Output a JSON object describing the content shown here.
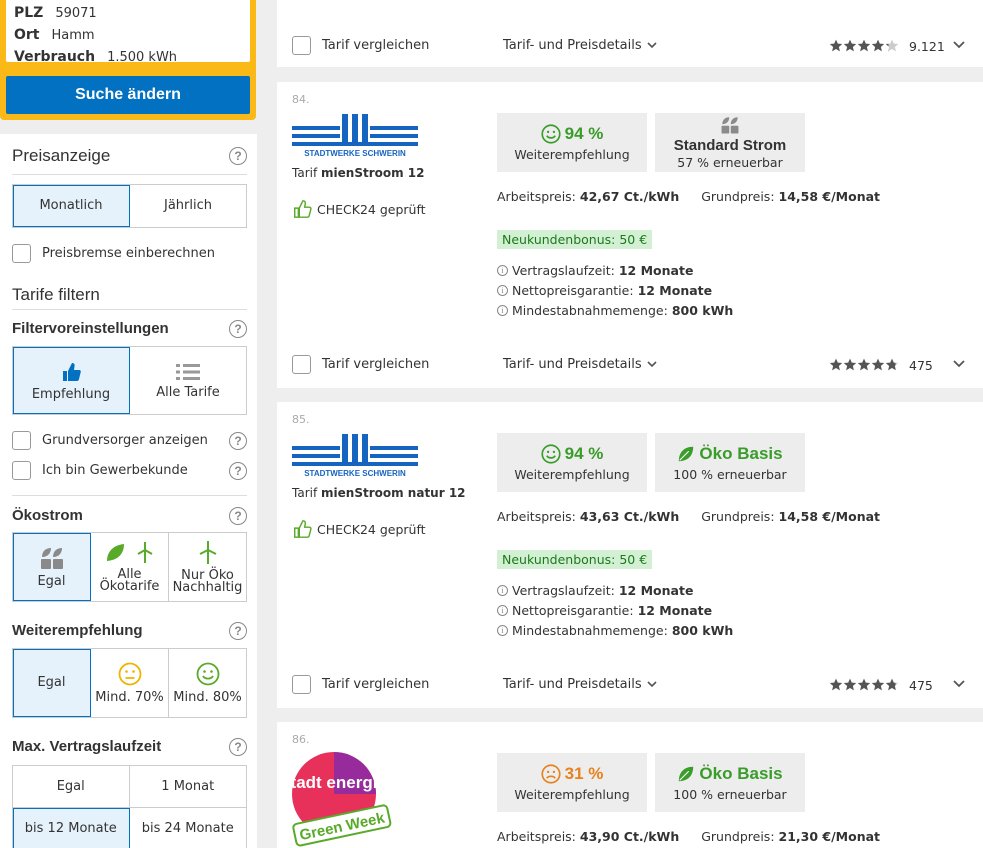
{
  "search": {
    "plz_label": "PLZ",
    "plz_value": "59071",
    "ort_label": "Ort",
    "ort_value": "Hamm",
    "verbrauch_label": "Verbrauch",
    "verbrauch_value": "1.500 kWh",
    "button_label": "Suche ändern"
  },
  "sidebar": {
    "preisanzeige": {
      "title": "Preisanzeige",
      "options": [
        "Monatlich",
        "Jährlich"
      ],
      "selected": "Monatlich"
    },
    "preisbremse_label": "Preisbremse einberechnen",
    "tarife_filtern_title": "Tarife filtern",
    "filtervoreinstellungen": {
      "title": "Filtervoreinstellungen",
      "options": [
        "Empfehlung",
        "Alle Tarife"
      ],
      "selected": "Empfehlung"
    },
    "grundversorger_label": "Grundversorger anzeigen",
    "gewerbekunde_label": "Ich bin Gewerbekunde",
    "oekostrom": {
      "title": "Ökostrom",
      "options": [
        "Egal",
        "Alle Ökotarife",
        "Nur Öko Nachhaltig"
      ],
      "selected": "Egal"
    },
    "weiterempfehlung": {
      "title": "Weiterempfehlung",
      "options": [
        "Egal",
        "Mind. 70%",
        "Mind. 80%"
      ],
      "selected": "Egal"
    },
    "vertragslaufzeit": {
      "title": "Max. Vertragslaufzeit",
      "options": [
        "Egal",
        "1 Monat",
        "bis 12 Monate",
        "bis 24 Monate"
      ],
      "selected": "bis 12 Monate"
    }
  },
  "cards": [
    {
      "footer": {
        "compare_label": "Tarif vergleichen",
        "details_label": "Tarif- und Preisdetails",
        "rating": 4.2,
        "rating_count": "9.121"
      }
    },
    {
      "rank": "84.",
      "provider_logo_text": "STADTWERKE SCHWERIN",
      "tariff_prefix": "Tarif",
      "tariff_name": "mienStroom 12",
      "check_label": "CHECK24 geprüft",
      "recommendation": {
        "value": "94 %",
        "label": "Weiterempfehlung",
        "mood": "happy"
      },
      "eco": {
        "title": "Standard Strom",
        "subtitle": "57 % erneuerbar",
        "icon": "grey-leaves-icon"
      },
      "arbeitspreis_label": "Arbeitspreis:",
      "arbeitspreis_value": "42,67 Ct./kWh",
      "grundpreis_label": "Grundpreis:",
      "grundpreis_value": "14,58 €/Monat",
      "bonus": "Neukundenbonus: 50 €",
      "infos": [
        {
          "label": "Vertragslaufzeit:",
          "value": "12 Monate"
        },
        {
          "label": "Nettopreisgarantie:",
          "value": "12 Monate"
        },
        {
          "label": "Mindestabnahmemenge:",
          "value": "800 kWh"
        }
      ],
      "footer": {
        "compare_label": "Tarif vergleichen",
        "details_label": "Tarif- und Preisdetails",
        "rating": 4.8,
        "rating_count": "475"
      }
    },
    {
      "rank": "85.",
      "provider_logo_text": "STADTWERKE SCHWERIN",
      "tariff_prefix": "Tarif",
      "tariff_name": "mienStroom natur 12",
      "check_label": "CHECK24 geprüft",
      "recommendation": {
        "value": "94 %",
        "label": "Weiterempfehlung",
        "mood": "happy"
      },
      "eco": {
        "title": "Öko Basis",
        "subtitle": "100 % erneuerbar",
        "icon": "green-leaf-icon"
      },
      "arbeitspreis_label": "Arbeitspreis:",
      "arbeitspreis_value": "43,63 Ct./kWh",
      "grundpreis_label": "Grundpreis:",
      "grundpreis_value": "14,58 €/Monat",
      "bonus": "Neukundenbonus: 50 €",
      "infos": [
        {
          "label": "Vertragslaufzeit:",
          "value": "12 Monate"
        },
        {
          "label": "Nettopreisgarantie:",
          "value": "12 Monate"
        },
        {
          "label": "Mindestabnahmemenge:",
          "value": "800 kWh"
        }
      ],
      "footer": {
        "compare_label": "Tarif vergleichen",
        "details_label": "Tarif- und Preisdetails",
        "rating": 4.8,
        "rating_count": "475"
      }
    },
    {
      "rank": "86.",
      "provider_logo_text": "stadt energie",
      "provider_logo_tag": "Green Week",
      "recommendation": {
        "value": "31 %",
        "label": "Weiterempfehlung",
        "mood": "sad"
      },
      "eco": {
        "title": "Öko Basis",
        "subtitle": "100 % erneuerbar",
        "icon": "green-leaf-icon"
      },
      "arbeitspreis_label": "Arbeitspreis:",
      "arbeitspreis_value": "43,90 Ct./kWh",
      "grundpreis_label": "Grundpreis:",
      "grundpreis_value": "21,30 €/Monat"
    }
  ],
  "colors": {
    "accent_blue": "#0271c2",
    "search_yellow": "#fbb917",
    "recommend_green": "#3a9c2a",
    "recommend_orange": "#e8811e",
    "bonus_bg": "#d4f0d4"
  }
}
